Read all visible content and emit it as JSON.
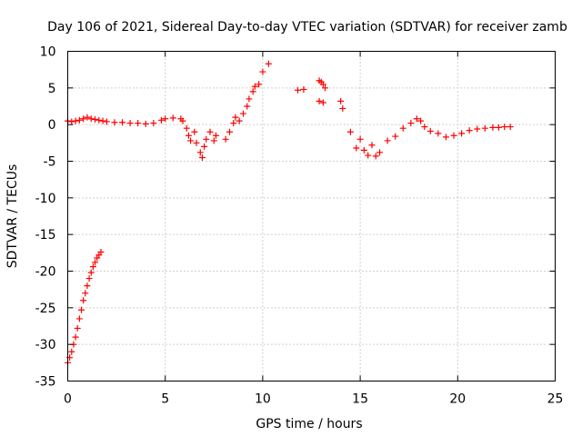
{
  "chart_data": {
    "type": "scatter",
    "title": "Day 106 of 2021, Sidereal Day-to-day VTEC variation (SDTVAR) for receiver zamb",
    "xlabel": "GPS time / hours",
    "ylabel": "SDTVAR / TECUs",
    "xlim": [
      0,
      25
    ],
    "ylim": [
      -35,
      10
    ],
    "xticks": [
      "0",
      "5",
      "10",
      "15",
      "20",
      "25"
    ],
    "yticks": [
      "10",
      "5",
      "0",
      "-5",
      "-10",
      "-15",
      "-20",
      "-25",
      "-30",
      "-35"
    ],
    "grid": true,
    "marker": "plus",
    "series": [
      {
        "name": "SDTVAR",
        "color": "#ff0000",
        "x": [
          0.0,
          0.1,
          0.2,
          0.3,
          0.4,
          0.5,
          0.6,
          0.7,
          0.8,
          0.9,
          1.0,
          1.1,
          1.2,
          1.3,
          1.4,
          1.5,
          1.6,
          1.7,
          0.0,
          0.2,
          0.4,
          0.6,
          0.8,
          1.0,
          1.2,
          1.4,
          1.6,
          1.8,
          2.0,
          2.4,
          2.8,
          3.2,
          3.6,
          4.0,
          4.4,
          4.8,
          5.0,
          5.4,
          5.8,
          5.9,
          6.1,
          6.2,
          6.3,
          6.5,
          6.6,
          6.8,
          6.9,
          7.0,
          7.1,
          7.3,
          7.5,
          7.6,
          8.1,
          8.3,
          8.5,
          8.6,
          8.8,
          9.0,
          9.2,
          9.3,
          9.5,
          9.6,
          9.8,
          10.0,
          10.3,
          11.8,
          12.1,
          12.9,
          13.0,
          13.1,
          13.2,
          12.9,
          13.1,
          14.0,
          14.1,
          14.5,
          14.8,
          15.0,
          15.2,
          15.4,
          15.6,
          15.8,
          16.0,
          16.4,
          16.8,
          17.2,
          17.6,
          17.9,
          18.1,
          18.3,
          18.6,
          19.0,
          19.4,
          19.8,
          20.2,
          20.6,
          21.0,
          21.4,
          21.8,
          22.1,
          22.4,
          22.7
        ],
        "y": [
          -32.5,
          -31.8,
          -31,
          -30,
          -29,
          -27.8,
          -26.5,
          -25.3,
          -24,
          -23,
          -22,
          -21,
          -20.2,
          -19.4,
          -18.8,
          -18.2,
          -17.8,
          -17.4,
          0.5,
          0.4,
          0.5,
          0.6,
          0.8,
          1.0,
          0.8,
          0.7,
          0.6,
          0.5,
          0.4,
          0.3,
          0.3,
          0.2,
          0.2,
          0.1,
          0.2,
          0.6,
          0.8,
          0.9,
          0.8,
          0.5,
          -0.5,
          -1.5,
          -2.2,
          -1.0,
          -2.5,
          -3.8,
          -4.5,
          -3.0,
          -2.0,
          -1.0,
          -2.2,
          -1.5,
          -2.0,
          -1.0,
          0.2,
          1.0,
          0.5,
          1.5,
          2.5,
          3.5,
          4.5,
          5.2,
          5.5,
          7.2,
          8.3,
          4.7,
          4.8,
          6.0,
          5.8,
          5.5,
          5.0,
          3.2,
          3.0,
          3.2,
          2.2,
          -1.0,
          -3.2,
          -2.0,
          -3.5,
          -4.2,
          -2.8,
          -4.3,
          -3.8,
          -2.2,
          -1.6,
          -0.5,
          0.2,
          0.8,
          0.5,
          -0.3,
          -0.9,
          -1.2,
          -1.7,
          -1.5,
          -1.2,
          -0.8,
          -0.6,
          -0.5,
          -0.4,
          -0.4,
          -0.3,
          -0.3
        ]
      }
    ]
  }
}
